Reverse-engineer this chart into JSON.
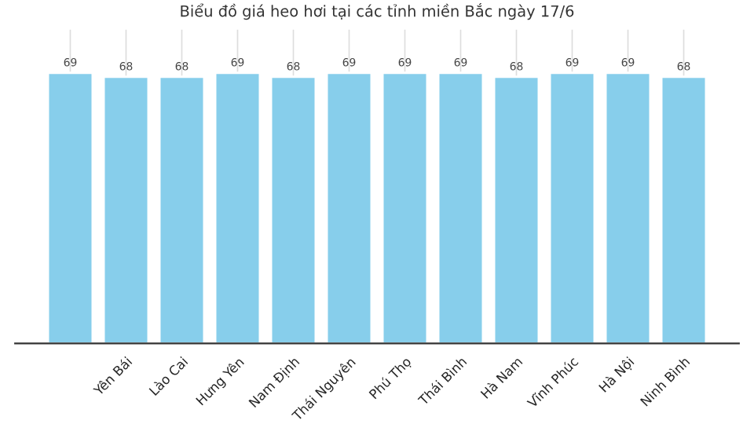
{
  "chart_data": {
    "type": "bar",
    "title": "Biểu đồ giá heo hơi tại các tỉnh miền Bắc ngày 17/6",
    "categories": [
      null,
      "Yên Bái",
      "Lào Cai",
      "Hưng Yên",
      "Nam Định",
      "Thái Nguyên",
      "Phú Thọ",
      "Thái Bình",
      "Hà Nam",
      "Vĩnh Phúc",
      "Hà Nội",
      "Ninh Bình"
    ],
    "values": [
      69,
      68,
      68,
      69,
      68,
      69,
      69,
      69,
      68,
      69,
      69,
      68
    ],
    "color": "#87ceeb",
    "data_labels": true,
    "ylim": [
      0,
      80
    ],
    "tick_labels": "x",
    "grid": "x"
  }
}
